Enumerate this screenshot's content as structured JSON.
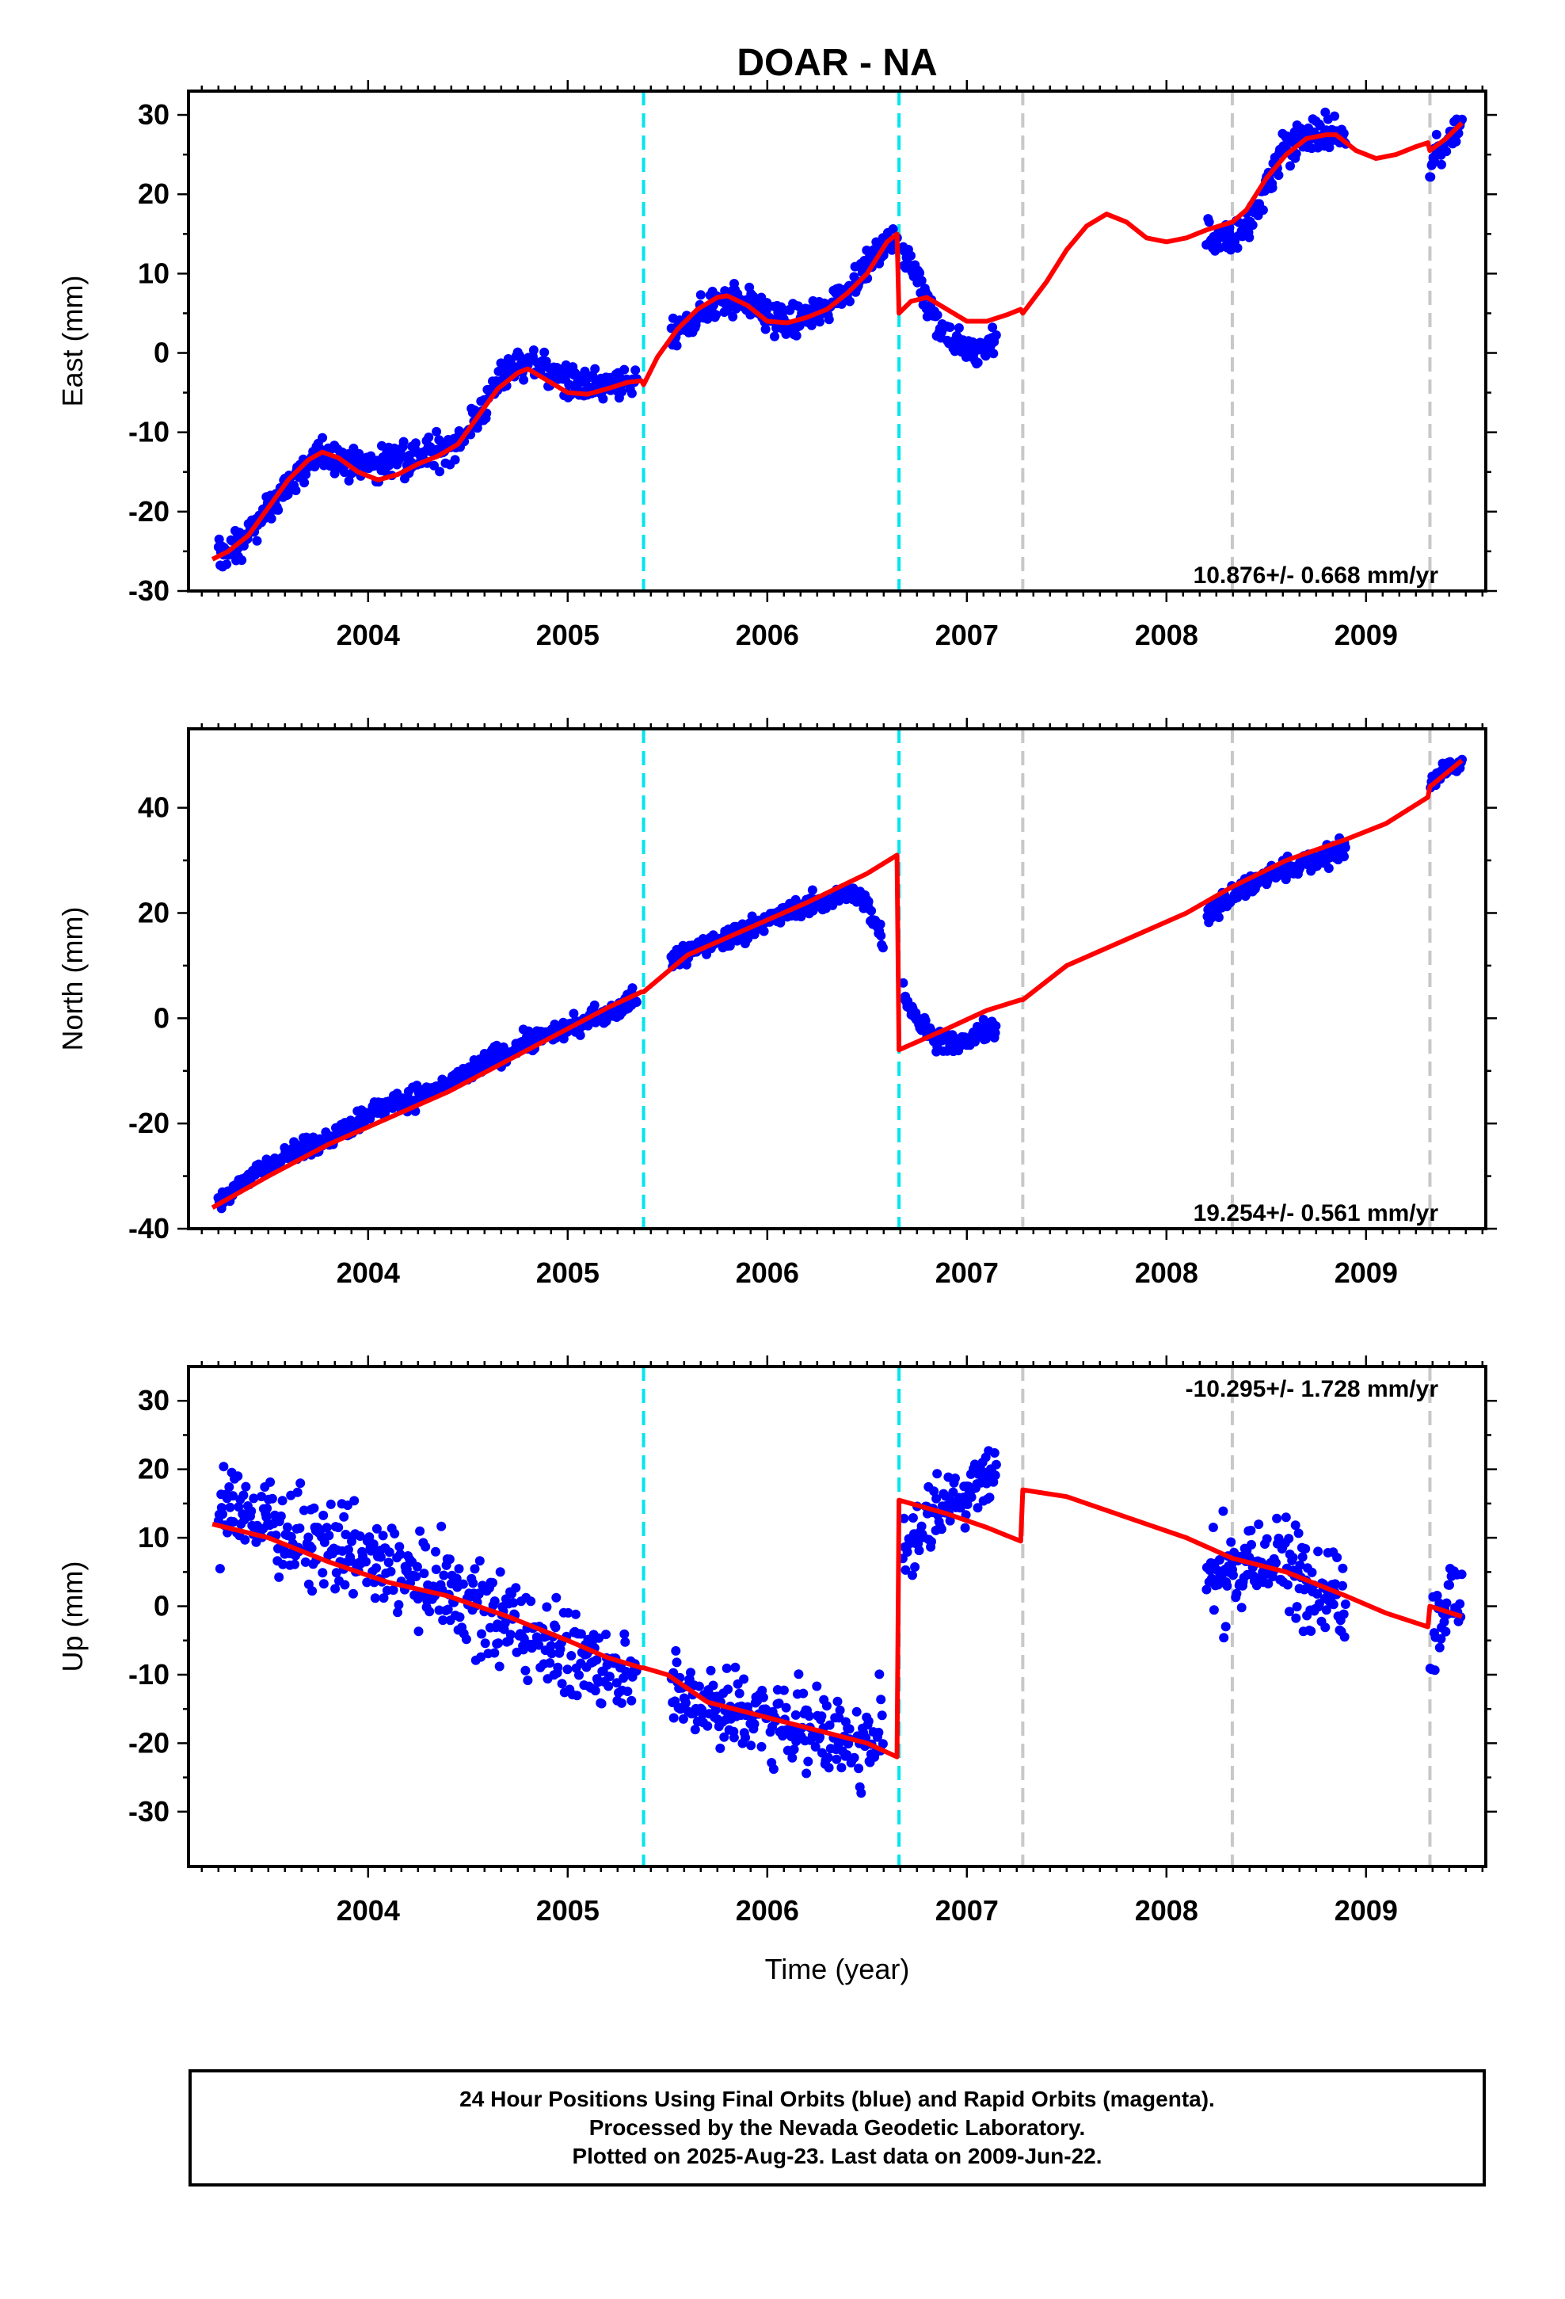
{
  "figure": {
    "title": "DOAR - NA",
    "x_axis_label": "Time (year)"
  },
  "colors": {
    "data_points": "#0000ff",
    "model_line": "#ff0000",
    "equipment_change": "#00e5ee",
    "other_event": "#c8c8c8"
  },
  "event_lines": [
    {
      "t": 2005.38,
      "kind": "equipment_change"
    },
    {
      "t": 2006.66,
      "kind": "equipment_change"
    },
    {
      "t": 2007.28,
      "kind": "other_event"
    },
    {
      "t": 2008.33,
      "kind": "other_event"
    },
    {
      "t": 2009.32,
      "kind": "other_event"
    }
  ],
  "chart_data": [
    {
      "type": "scatter",
      "component": "east",
      "ylabel": "East (mm)",
      "rate_label": "10.876+/- 0.668 mm/yr",
      "xlim": [
        2003.1,
        2009.6
      ],
      "ylim": [
        -30,
        33
      ],
      "x_ticks": [
        "2004",
        "2005",
        "2006",
        "2007",
        "2008",
        "2009"
      ],
      "y_ticks": [
        "-30",
        "-20",
        "-10",
        "0",
        "10",
        "20",
        "30"
      ],
      "data_segments": [
        {
          "x": [
            2003.25,
            2003.35,
            2003.45,
            2003.55,
            2003.65,
            2003.75,
            2003.85,
            2003.95,
            2004.05,
            2004.15,
            2004.25,
            2004.35,
            2004.45,
            2004.55,
            2004.65,
            2004.75,
            2004.85,
            2004.95,
            2005.05,
            2005.15,
            2005.25,
            2005.35
          ],
          "y": [
            -25.5,
            -24.5,
            -21.5,
            -18,
            -15,
            -13,
            -13,
            -14,
            -14,
            -13,
            -13,
            -12.5,
            -11,
            -8,
            -4,
            -1,
            -1.5,
            -3,
            -4,
            -4.5,
            -4,
            -3.5
          ],
          "spread": 2.0
        },
        {
          "x": [
            2005.52,
            2005.6,
            2005.7,
            2005.8,
            2005.9,
            2006.0,
            2006.1,
            2006.2,
            2006.3,
            2006.4,
            2006.5,
            2006.6,
            2006.65
          ],
          "y": [
            2,
            3.5,
            5.5,
            7,
            6.5,
            4.5,
            3.5,
            4.5,
            6,
            8,
            11,
            14,
            15
          ],
          "spread": 2.0
        },
        {
          "x": [
            2006.68,
            2006.75,
            2006.85,
            2006.95,
            2007.05,
            2007.15
          ],
          "y": [
            12,
            10,
            4,
            1,
            0,
            2
          ],
          "spread": 2.0
        },
        {
          "x": [
            2008.2,
            2008.3,
            2008.4,
            2008.5,
            2008.6,
            2008.7,
            2008.8,
            2008.9
          ],
          "y": [
            15,
            14,
            16,
            21,
            26,
            27.5,
            28,
            27
          ],
          "spread": 2.2
        },
        {
          "x": [
            2009.32,
            2009.4,
            2009.48
          ],
          "y": [
            24,
            26,
            29
          ],
          "spread": 2.0
        }
      ],
      "model_line": {
        "x": [
          2003.22,
          2003.3,
          2003.4,
          2003.5,
          2003.6,
          2003.7,
          2003.77,
          2003.85,
          2003.95,
          2004.05,
          2004.15,
          2004.25,
          2004.35,
          2004.45,
          2004.55,
          2004.65,
          2004.75,
          2004.8,
          2004.9,
          2005.0,
          2005.1,
          2005.2,
          2005.3,
          2005.37,
          2005.38,
          2005.45,
          2005.55,
          2005.65,
          2005.75,
          2005.8,
          2005.9,
          2006.0,
          2006.1,
          2006.2,
          2006.3,
          2006.4,
          2006.5,
          2006.6,
          2006.65,
          2006.66,
          2006.72,
          2006.8,
          2006.9,
          2007.0,
          2007.1,
          2007.2,
          2007.27,
          2007.28,
          2007.4,
          2007.5,
          2007.6,
          2007.7,
          2007.8,
          2007.9,
          2008.0,
          2008.1,
          2008.2,
          2008.33,
          2008.4,
          2008.5,
          2008.6,
          2008.7,
          2008.8,
          2008.85,
          2008.95,
          2009.05,
          2009.15,
          2009.25,
          2009.31,
          2009.32,
          2009.4,
          2009.48
        ],
        "y": [
          -26,
          -25,
          -23,
          -19.5,
          -16,
          -13.5,
          -12.5,
          -13.2,
          -15,
          -16,
          -15.3,
          -14,
          -13,
          -11.5,
          -8,
          -4.5,
          -2.5,
          -2,
          -3.5,
          -5,
          -5.2,
          -4.5,
          -3.7,
          -3.5,
          -4,
          -0.5,
          3,
          5.5,
          7,
          7.2,
          6,
          4,
          3.8,
          4.5,
          5.5,
          7.5,
          10,
          14,
          15,
          5,
          6.5,
          7,
          5.5,
          4,
          4,
          4.8,
          5.5,
          5,
          9,
          13,
          16,
          17.5,
          16.5,
          14.5,
          14,
          14.5,
          15.5,
          16.5,
          18,
          22,
          25,
          27,
          27.5,
          27.5,
          25.5,
          24.5,
          25,
          26,
          26.5,
          25.5,
          27,
          29
        ]
      }
    },
    {
      "type": "scatter",
      "component": "north",
      "ylabel": "North (mm)",
      "rate_label": "19.254+/- 0.561 mm/yr",
      "xlim": [
        2003.1,
        2009.6
      ],
      "ylim": [
        -40,
        55
      ],
      "x_ticks": [
        "2004",
        "2005",
        "2006",
        "2007",
        "2008",
        "2009"
      ],
      "y_ticks": [
        "-40",
        "-20",
        "0",
        "20",
        "40"
      ],
      "data_segments": [
        {
          "x": [
            2003.25,
            2003.4,
            2003.55,
            2003.7,
            2003.85,
            2004.0,
            2004.15,
            2004.3,
            2004.45,
            2004.6,
            2004.75,
            2004.9,
            2005.05,
            2005.2,
            2005.35
          ],
          "y": [
            -35,
            -30,
            -27,
            -24,
            -22,
            -18,
            -16,
            -14,
            -12,
            -8,
            -5,
            -3,
            -1,
            1,
            4
          ],
          "spread": 2.0
        },
        {
          "x": [
            2005.52,
            2005.65,
            2005.8,
            2005.95,
            2006.1,
            2006.25,
            2006.4,
            2006.5,
            2006.58
          ],
          "y": [
            11,
            13,
            15,
            18,
            20,
            22,
            24,
            22,
            15
          ],
          "spread": 2.0
        },
        {
          "x": [
            2006.68,
            2006.75,
            2006.85,
            2006.95,
            2007.05,
            2007.15
          ],
          "y": [
            5,
            0,
            -4,
            -5,
            -3,
            -2
          ],
          "spread": 2.0
        },
        {
          "x": [
            2008.2,
            2008.35,
            2008.5,
            2008.65,
            2008.8,
            2008.9
          ],
          "y": [
            20,
            24,
            27,
            29,
            31,
            32
          ],
          "spread": 2.2
        },
        {
          "x": [
            2009.32,
            2009.4,
            2009.48
          ],
          "y": [
            45,
            47,
            49
          ],
          "spread": 1.8
        }
      ],
      "model_line": {
        "x": [
          2003.22,
          2003.5,
          2003.8,
          2004.1,
          2004.4,
          2004.7,
          2005.0,
          2005.2,
          2005.37,
          2005.38,
          2005.6,
          2005.9,
          2006.2,
          2006.5,
          2006.65,
          2006.66,
          2006.9,
          2007.1,
          2007.27,
          2007.28,
          2007.5,
          2007.8,
          2008.1,
          2008.33,
          2008.6,
          2008.9,
          2009.1,
          2009.31,
          2009.32,
          2009.48
        ],
        "y": [
          -36,
          -30,
          -24,
          -19,
          -14,
          -8,
          -2,
          2,
          5,
          5,
          12,
          17,
          22,
          27.5,
          31,
          -6,
          -2,
          1.5,
          3.5,
          3.5,
          10,
          15,
          20,
          25,
          30,
          34,
          37,
          42,
          44,
          49
        ]
      }
    },
    {
      "type": "scatter",
      "component": "up",
      "ylabel": "Up (mm)",
      "rate_label": "-10.295+/- 1.728 mm/yr",
      "xlim": [
        2003.1,
        2009.6
      ],
      "ylim": [
        -38,
        35
      ],
      "x_ticks": [
        "2004",
        "2005",
        "2006",
        "2007",
        "2008",
        "2009"
      ],
      "y_ticks": [
        "-30",
        "-20",
        "-10",
        "0",
        "10",
        "20",
        "30"
      ],
      "data_segments": [
        {
          "x": [
            2003.25,
            2003.4,
            2003.55,
            2003.7,
            2003.85,
            2004.0,
            2004.15,
            2004.3,
            2004.45,
            2004.6,
            2004.75,
            2004.9,
            2005.05,
            2005.2,
            2005.35
          ],
          "y": [
            13,
            14,
            12,
            10,
            8,
            6,
            5,
            3,
            1,
            -1,
            -3,
            -5,
            -8,
            -9,
            -8
          ],
          "spread": 6.5
        },
        {
          "x": [
            2005.52,
            2005.65,
            2005.8,
            2005.95,
            2006.1,
            2006.25,
            2006.4,
            2006.5,
            2006.58
          ],
          "y": [
            -12,
            -14,
            -15,
            -16,
            -17,
            -18,
            -20,
            -22,
            -15
          ],
          "spread": 6.0
        },
        {
          "x": [
            2006.68,
            2006.8,
            2006.95,
            2007.05,
            2007.15
          ],
          "y": [
            8,
            13,
            16,
            18,
            20
          ],
          "spread": 5.0
        },
        {
          "x": [
            2008.2,
            2008.35,
            2008.5,
            2008.65,
            2008.8,
            2008.9
          ],
          "y": [
            5,
            6,
            7,
            5,
            3,
            2
          ],
          "spread": 7.5
        },
        {
          "x": [
            2009.32,
            2009.4,
            2009.48
          ],
          "y": [
            -5,
            0,
            2
          ],
          "spread": 6.0
        }
      ],
      "model_line": {
        "x": [
          2003.22,
          2003.5,
          2003.8,
          2004.1,
          2004.4,
          2004.7,
          2005.0,
          2005.2,
          2005.37,
          2005.38,
          2005.5,
          2005.7,
          2005.9,
          2006.1,
          2006.3,
          2006.5,
          2006.65,
          2006.66,
          2006.9,
          2007.1,
          2007.27,
          2007.28,
          2007.5,
          2007.8,
          2008.1,
          2008.33,
          2008.6,
          2008.9,
          2009.1,
          2009.31,
          2009.32,
          2009.48
        ],
        "y": [
          12,
          10,
          6.5,
          3.5,
          1.5,
          -1.5,
          -5,
          -7.5,
          -9,
          -9,
          -10,
          -14,
          -15.5,
          -17,
          -18.5,
          -20,
          -22,
          15.5,
          13.5,
          11.5,
          9.5,
          17,
          16,
          13,
          10,
          7,
          5,
          1.5,
          -1,
          -3,
          0,
          -1.5
        ]
      }
    }
  ],
  "footer": {
    "line1": "24 Hour Positions Using Final Orbits (blue) and Rapid Orbits (magenta).",
    "line2": "Processed by the Nevada Geodetic Laboratory.",
    "line3": "Plotted on 2025-Aug-23. Last data on 2009-Jun-22."
  }
}
